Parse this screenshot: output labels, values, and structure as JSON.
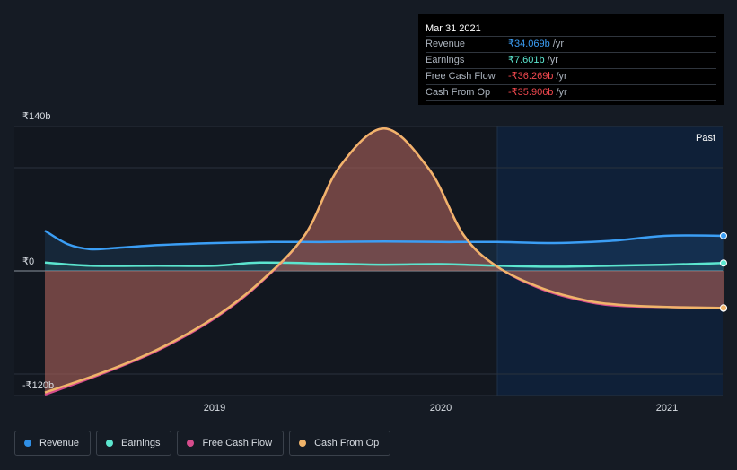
{
  "tooltip": {
    "date": "Mar 31 2021",
    "rows": [
      {
        "label": "Revenue",
        "value": "₹34.069b",
        "unit": "/yr",
        "color": "#3b9ef5"
      },
      {
        "label": "Earnings",
        "value": "₹7.601b",
        "unit": "/yr",
        "color": "#5ce6cf"
      },
      {
        "label": "Free Cash Flow",
        "value": "-₹36.269b",
        "unit": "/yr",
        "color": "#f0484e"
      },
      {
        "label": "Cash From Op",
        "value": "-₹35.906b",
        "unit": "/yr",
        "color": "#f0484e"
      }
    ]
  },
  "past_label": "Past",
  "legend": [
    {
      "label": "Revenue",
      "color": "#2f8fe6"
    },
    {
      "label": "Earnings",
      "color": "#5ce6cf"
    },
    {
      "label": "Free Cash Flow",
      "color": "#d64c8c"
    },
    {
      "label": "Cash From Op",
      "color": "#f0b46a"
    }
  ],
  "chart_data": {
    "type": "area",
    "y_tick_labels": [
      "₹140b",
      "₹0",
      "-₹120b"
    ],
    "ylim": [
      -120,
      140
    ],
    "y_unit": "₹ billions",
    "x_tick_labels": [
      "2019",
      "2020",
      "2021"
    ],
    "x_ticks": [
      2019.0,
      2020.0,
      2021.0
    ],
    "xlim": [
      2018.1,
      2021.25
    ],
    "past_region_start": 2020.25,
    "series": [
      {
        "name": "Revenue",
        "color": "#3b9ef5",
        "x": [
          2018.25,
          2018.35,
          2018.45,
          2018.55,
          2018.75,
          2019.0,
          2019.25,
          2019.5,
          2019.75,
          2020.0,
          2020.25,
          2020.5,
          2020.75,
          2021.0,
          2021.25
        ],
        "y": [
          39,
          26,
          21,
          22,
          25,
          27,
          28,
          28,
          28.5,
          28,
          28,
          27,
          29,
          34,
          34.069
        ]
      },
      {
        "name": "Earnings",
        "color": "#5ce6cf",
        "x": [
          2018.25,
          2018.45,
          2018.75,
          2019.0,
          2019.2,
          2019.5,
          2019.75,
          2020.0,
          2020.25,
          2020.5,
          2020.75,
          2021.0,
          2021.25
        ],
        "y": [
          8,
          5,
          5,
          5,
          8,
          7,
          6,
          6.5,
          5,
          4,
          5,
          6,
          7.601
        ]
      },
      {
        "name": "Free Cash Flow",
        "color": "#d64c8c",
        "x": [
          2018.25,
          2018.5,
          2018.75,
          2019.0,
          2019.2,
          2019.4,
          2019.55,
          2019.75,
          2019.95,
          2020.1,
          2020.25,
          2020.45,
          2020.65,
          2020.8,
          2021.0,
          2021.25
        ],
        "y": [
          -120,
          -100,
          -77,
          -46,
          -12,
          35,
          100,
          138,
          98,
          35,
          4,
          -18,
          -30,
          -34,
          -35,
          -36.269
        ]
      },
      {
        "name": "Cash From Op",
        "color": "#f0b46a",
        "x": [
          2018.25,
          2018.5,
          2018.75,
          2019.0,
          2019.2,
          2019.4,
          2019.55,
          2019.75,
          2019.95,
          2020.1,
          2020.25,
          2020.45,
          2020.65,
          2020.8,
          2021.0,
          2021.25
        ],
        "y": [
          -118,
          -99,
          -76,
          -45,
          -11,
          35,
          100,
          138,
          98,
          35,
          4,
          -17,
          -29,
          -33,
          -35,
          -35.906
        ]
      }
    ],
    "grid": true,
    "legend_position": "bottom-left"
  }
}
